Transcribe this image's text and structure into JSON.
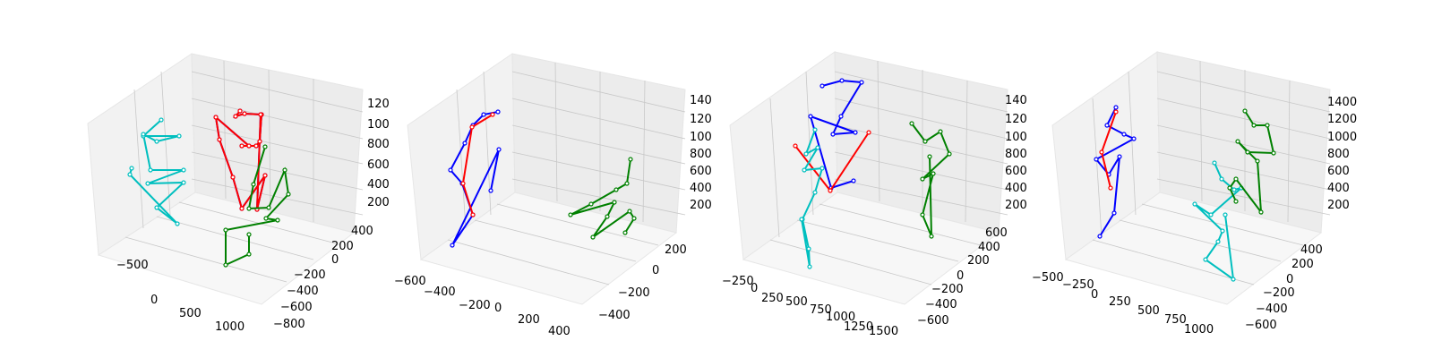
{
  "chart_data": [
    {
      "type": "scatter",
      "subtype": "3d-skeleton",
      "x_ticks": [
        "−500",
        "0",
        "500",
        "1000"
      ],
      "y_ticks": [
        "−800",
        "−600",
        "−400",
        "−200",
        "0",
        "200",
        "400"
      ],
      "z_ticks": [
        "200",
        "400",
        "600",
        "800",
        "100",
        "120"
      ],
      "skeletons": [
        {
          "color": "#0000ff",
          "joints": [
            [
              268,
              124
            ],
            [
              263,
              130
            ],
            [
              273,
              127
            ],
            [
              292,
              128
            ],
            [
              290,
              158
            ],
            [
              286,
              163
            ],
            [
              270,
              163
            ],
            [
              278,
              163
            ],
            [
              241,
              131
            ],
            [
              245,
              156
            ],
            [
              260,
              198
            ],
            [
              270,
              233
            ],
            [
              296,
              196
            ],
            [
              287,
              234
            ],
            [
              291,
              128
            ]
          ]
        },
        {
          "color": "#ff0000",
          "joints": [
            [
              268,
              124
            ],
            [
              263,
              130
            ],
            [
              273,
              127
            ],
            [
              292,
              128
            ],
            [
              290,
              158
            ],
            [
              286,
              163
            ],
            [
              270,
              163
            ],
            [
              278,
              163
            ],
            [
              241,
              131
            ],
            [
              245,
              156
            ],
            [
              260,
              198
            ],
            [
              270,
              233
            ],
            [
              296,
              196
            ],
            [
              287,
              234
            ],
            [
              291,
              128
            ]
          ]
        },
        {
          "color": "#00bfbf",
          "joints": [
            [
              180,
              134
            ],
            [
              160,
              152
            ],
            [
              200,
              152
            ],
            [
              175,
              158
            ],
            [
              160,
              150
            ],
            [
              168,
              190
            ],
            [
              205,
              190
            ],
            [
              165,
              205
            ],
            [
              205,
              204
            ],
            [
              175,
              232
            ],
            [
              198,
              250
            ],
            [
              145,
              195
            ],
            [
              147,
              188
            ]
          ]
        },
        {
          "color": "#008000",
          "joints": [
            [
              296,
              164
            ],
            [
              283,
              206
            ],
            [
              278,
              233
            ],
            [
              300,
              232
            ],
            [
              318,
              190
            ],
            [
              322,
              217
            ],
            [
              297,
              244
            ],
            [
              310,
              246
            ],
            [
              252,
              257
            ],
            [
              252,
              296
            ],
            [
              278,
              284
            ],
            [
              278,
              262
            ]
          ]
        }
      ]
    },
    {
      "type": "scatter",
      "subtype": "3d-skeleton",
      "x_ticks": [
        "−600",
        "−400",
        "−200",
        "0",
        "200",
        "400"
      ],
      "y_ticks": [
        "−400",
        "−200",
        "0",
        "200"
      ],
      "z_ticks": [
        "200",
        "400",
        "600",
        "800",
        "100",
        "120",
        "140"
      ],
      "skeletons": [
        {
          "color": "#0000ff",
          "joints": [
            [
              556,
              125
            ],
            [
              540,
              128
            ],
            [
              528,
              140
            ],
            [
              519,
              160
            ],
            [
              503,
              190
            ],
            [
              516,
              205
            ],
            [
              528,
              240
            ],
            [
              505,
              274
            ],
            [
              557,
              167
            ],
            [
              548,
              213
            ]
          ]
        },
        {
          "color": "#ff0000",
          "joints": [
            [
              550,
              128
            ],
            [
              527,
              142
            ],
            [
              517,
              205
            ],
            [
              528,
              240
            ]
          ]
        },
        {
          "color": "#008000",
          "joints": [
            [
              704,
              178
            ],
            [
              700,
              205
            ],
            [
              688,
              212
            ],
            [
              660,
              228
            ],
            [
              637,
              240
            ],
            [
              686,
              226
            ],
            [
              678,
              242
            ],
            [
              662,
              265
            ],
            [
              703,
              236
            ],
            [
              708,
              244
            ],
            [
              698,
              260
            ]
          ]
        }
      ]
    },
    {
      "type": "scatter",
      "subtype": "3d-skeleton",
      "x_ticks": [
        "−250",
        "0",
        "250",
        "500",
        "750",
        "1000",
        "1250",
        "1500"
      ],
      "y_ticks": [
        "−600",
        "−400",
        "−200",
        "0",
        "200",
        "400",
        "600"
      ],
      "z_ticks": [
        "200",
        "400",
        "600",
        "800",
        "100",
        "120",
        "140"
      ],
      "skeletons": [
        {
          "color": "#0000ff",
          "joints": [
            [
              918,
              96
            ],
            [
              940,
              90
            ],
            [
              962,
              92
            ],
            [
              939,
              130
            ],
            [
              930,
              150
            ],
            [
              955,
              148
            ],
            [
              905,
              130
            ],
            [
              928,
              210
            ],
            [
              953,
              202
            ]
          ]
        },
        {
          "color": "#ff0000",
          "joints": [
            [
              970,
              148
            ],
            [
              927,
              213
            ],
            [
              888,
              163
            ]
          ]
        },
        {
          "color": "#00bfbf",
          "joints": [
            [
              910,
              145
            ],
            [
              900,
              172
            ],
            [
              913,
              165
            ],
            [
              898,
              190
            ],
            [
              918,
              188
            ],
            [
              910,
              215
            ],
            [
              896,
              245
            ],
            [
              903,
              278
            ],
            [
              904,
              298
            ],
            [
              895,
              245
            ]
          ]
        },
        {
          "color": "#008000",
          "joints": [
            [
              1018,
              138
            ],
            [
              1033,
              158
            ],
            [
              1050,
              147
            ],
            [
              1060,
              172
            ],
            [
              1030,
              200
            ],
            [
              1042,
              194
            ],
            [
              1030,
              240
            ],
            [
              1040,
              264
            ],
            [
              1038,
              175
            ]
          ]
        }
      ]
    },
    {
      "type": "scatter",
      "subtype": "3d-skeleton",
      "x_ticks": [
        "−500",
        "−250",
        "0",
        "250",
        "500",
        "750",
        "1000"
      ],
      "y_ticks": [
        "−600",
        "−400",
        "−200",
        "0",
        "200",
        "400"
      ],
      "z_ticks": [
        "200",
        "400",
        "600",
        "800",
        "1000",
        "1200",
        "1400"
      ],
      "skeletons": [
        {
          "color": "#0000ff",
          "joints": [
            [
              1246,
              120
            ],
            [
              1236,
              140
            ],
            [
              1255,
              150
            ],
            [
              1266,
              155
            ],
            [
              1224,
              178
            ],
            [
              1238,
              195
            ],
            [
              1250,
              175
            ],
            [
              1244,
              238
            ],
            [
              1228,
              264
            ]
          ]
        },
        {
          "color": "#ff0000",
          "joints": [
            [
              1246,
              125
            ],
            [
              1230,
              170
            ],
            [
              1240,
              210
            ]
          ]
        },
        {
          "color": "#00bfbf",
          "joints": [
            [
              1356,
              182
            ],
            [
              1364,
              200
            ],
            [
              1378,
              212
            ],
            [
              1386,
              210
            ],
            [
              1352,
              240
            ],
            [
              1334,
              228
            ],
            [
              1365,
              258
            ],
            [
              1360,
              270
            ],
            [
              1346,
              290
            ],
            [
              1377,
              312
            ],
            [
              1368,
              240
            ]
          ]
        },
        {
          "color": "#008000",
          "joints": [
            [
              1390,
              124
            ],
            [
              1400,
              140
            ],
            [
              1415,
              140
            ],
            [
              1422,
              171
            ],
            [
              1393,
              170
            ],
            [
              1382,
              158
            ],
            [
              1404,
              180
            ],
            [
              1408,
              237
            ],
            [
              1380,
              200
            ],
            [
              1373,
              210
            ],
            [
              1380,
              225
            ]
          ]
        }
      ]
    }
  ]
}
